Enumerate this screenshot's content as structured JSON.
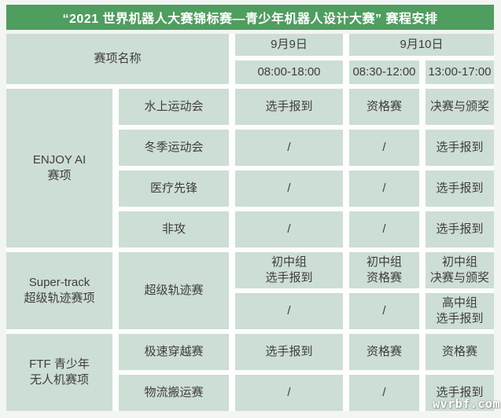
{
  "title": "“2021 世界机器人大赛锦标赛—青少年机器人设计大赛” 赛程安排",
  "colors": {
    "header_green": "#4f9d5f",
    "cell_bg": "#cdded5",
    "cell_text": "#3e3e3e",
    "title_text": "#ffffff",
    "gap_white": "#fdfefd",
    "page_bg": "#f3f5f3"
  },
  "table": {
    "header": {
      "name_label": "赛项名称",
      "day1": "9月9日",
      "day1_time": "08:00-18:00",
      "day2": "9月10日",
      "day2_am": "08:30-12:00",
      "day2_pm": "13:00-17:00"
    },
    "groups": [
      {
        "category": "ENJOY AI\n赛项",
        "rows": [
          {
            "event": "水上运动会",
            "d1": "选手报到",
            "d2am": "资格赛",
            "d2pm": "决赛与颁奖"
          },
          {
            "event": "冬季运动会",
            "d1": "/",
            "d2am": "/",
            "d2pm": "选手报到"
          },
          {
            "event": "医疗先锋",
            "d1": "/",
            "d2am": "/",
            "d2pm": "选手报到"
          },
          {
            "event": "非攻",
            "d1": "/",
            "d2am": "/",
            "d2pm": "选手报到"
          }
        ]
      },
      {
        "category": "Super-track\n超级轨迹赛项",
        "event": "超级轨迹赛",
        "rows": [
          {
            "d1": "初中组\n选手报到",
            "d2am": "初中组\n资格赛",
            "d2pm": "初中组\n决赛与颁奖"
          },
          {
            "d1": "/",
            "d2am": "/",
            "d2pm": "高中组\n选手报到"
          }
        ]
      },
      {
        "category": "FTF 青少年\n无人机赛项",
        "rows": [
          {
            "event": "极速穿越赛",
            "d1": "选手报到",
            "d2am": "资格赛",
            "d2pm": "资格赛"
          },
          {
            "event": "物流搬运赛",
            "d1": "/",
            "d2am": "/",
            "d2pm": "选手报到"
          }
        ]
      }
    ]
  },
  "watermark": "wvrbf.com"
}
